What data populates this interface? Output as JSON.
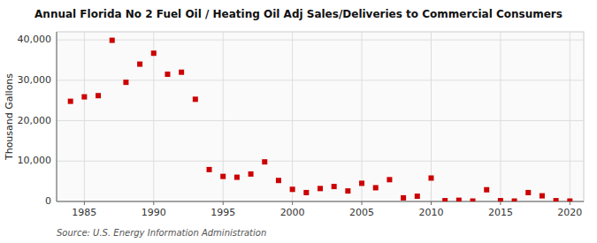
{
  "chart_data": {
    "type": "scatter",
    "title": "Annual Florida No 2 Fuel Oil / Heating Oil Adj Sales/Deliveries to Commercial Consumers",
    "y_label": "Thousand Gallons",
    "annotations": [
      "Source: U.S. Energy Information Administration"
    ],
    "x": [
      1984,
      1985,
      1986,
      1987,
      1988,
      1989,
      1990,
      1991,
      1992,
      1993,
      1994,
      1995,
      1996,
      1997,
      1998,
      1999,
      2000,
      2001,
      2002,
      2003,
      2004,
      2005,
      2006,
      2007,
      2008,
      2009,
      2010,
      2011,
      2012,
      2013,
      2014,
      2015,
      2016,
      2017,
      2018,
      2019,
      2020
    ],
    "values": [
      24800,
      25900,
      26200,
      39900,
      29500,
      34000,
      36700,
      31500,
      32000,
      25300,
      7900,
      6200,
      6000,
      6800,
      9800,
      5200,
      3000,
      2200,
      3200,
      3700,
      2600,
      4500,
      3400,
      5400,
      900,
      1300,
      5800,
      200,
      300,
      100,
      2900,
      200,
      100,
      2200,
      1400,
      200,
      100
    ],
    "color": "#cc0000",
    "marker": "square",
    "xlim": [
      1983,
      2021
    ],
    "ylim": [
      0,
      42000
    ],
    "xticks": [
      1985,
      1990,
      1995,
      2000,
      2005,
      2010,
      2015,
      2020
    ],
    "yticks": [
      0,
      {
        "value": 10000,
        "label": "10,000"
      },
      {
        "value": 20000,
        "label": "20,000"
      },
      {
        "value": 30000,
        "label": "30,000"
      },
      {
        "value": 40000,
        "label": "40,000"
      }
    ],
    "grid": true
  }
}
